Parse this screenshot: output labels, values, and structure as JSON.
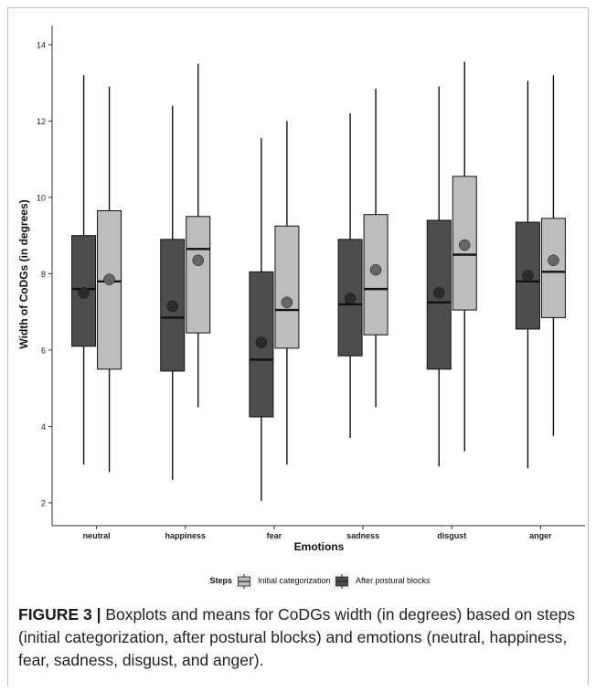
{
  "chart_data": {
    "type": "box",
    "title": "",
    "xlabel": "Emotions",
    "ylabel": "Width of CoDGs (in degrees)",
    "ylim": [
      1.4,
      14.5
    ],
    "yticks": [
      2,
      4,
      6,
      8,
      10,
      12,
      14
    ],
    "grid": false,
    "legend_position": "bottom",
    "legend_title": "Steps",
    "categories": [
      "neutral",
      "happiness",
      "fear",
      "sadness",
      "disgust",
      "anger"
    ],
    "series": [
      {
        "name": "After postural blocks",
        "color": "#4d4d4d",
        "offset": -1,
        "boxes": [
          {
            "min": 3.0,
            "q1": 6.1,
            "median": 7.6,
            "q3": 9.0,
            "max": 13.2,
            "mean": 7.5
          },
          {
            "min": 2.6,
            "q1": 5.45,
            "median": 6.85,
            "q3": 8.9,
            "max": 12.4,
            "mean": 7.15
          },
          {
            "min": 2.05,
            "q1": 4.25,
            "median": 5.75,
            "q3": 8.05,
            "max": 11.55,
            "mean": 6.2
          },
          {
            "min": 3.7,
            "q1": 5.85,
            "median": 7.2,
            "q3": 8.9,
            "max": 12.2,
            "mean": 7.35
          },
          {
            "min": 2.95,
            "q1": 5.5,
            "median": 7.25,
            "q3": 9.4,
            "max": 12.9,
            "mean": 7.5
          },
          {
            "min": 2.9,
            "q1": 6.55,
            "median": 7.8,
            "q3": 9.35,
            "max": 13.05,
            "mean": 7.95
          }
        ]
      },
      {
        "name": "Initial categorization",
        "color": "#bdbdbd",
        "offset": 1,
        "boxes": [
          {
            "min": 2.8,
            "q1": 5.5,
            "median": 7.8,
            "q3": 9.65,
            "max": 12.9,
            "mean": 7.85
          },
          {
            "min": 4.5,
            "q1": 6.45,
            "median": 8.65,
            "q3": 9.5,
            "max": 13.5,
            "mean": 8.35
          },
          {
            "min": 3.0,
            "q1": 6.05,
            "median": 7.05,
            "q3": 9.25,
            "max": 12.0,
            "mean": 7.25
          },
          {
            "min": 4.5,
            "q1": 6.4,
            "median": 7.6,
            "q3": 9.55,
            "max": 12.85,
            "mean": 8.1
          },
          {
            "min": 3.35,
            "q1": 7.05,
            "median": 8.5,
            "q3": 10.55,
            "max": 13.55,
            "mean": 8.75
          },
          {
            "min": 3.75,
            "q1": 6.85,
            "median": 8.05,
            "q3": 9.45,
            "max": 13.2,
            "mean": 8.35
          }
        ]
      }
    ],
    "legend": {
      "title": "Steps",
      "items": [
        "Initial categorization",
        "After postural blocks"
      ]
    }
  },
  "caption": {
    "label": "FIGURE 3 |",
    "text": "Boxplots and means for CoDGs width (in degrees) based on steps (initial categorization, after postural blocks) and emotions (neutral, happiness, fear, sadness, disgust, and anger)."
  }
}
